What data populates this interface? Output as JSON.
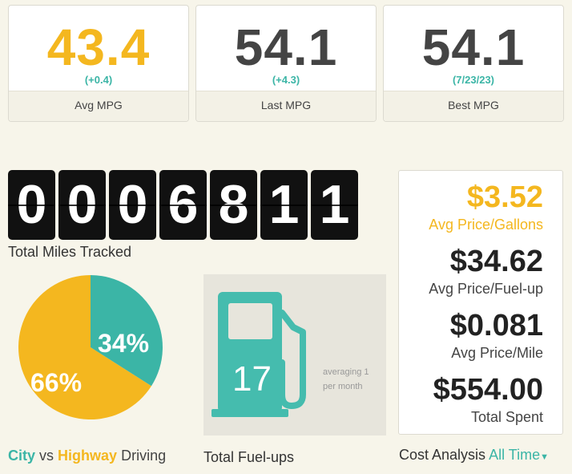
{
  "colors": {
    "teal": "#3bb5a6",
    "gold": "#f4b71f",
    "background": "#f7f5ea"
  },
  "stats": [
    {
      "value": "43.4",
      "delta": "(+0.4)",
      "label": "Avg MPG",
      "value_color": "#f4b71f"
    },
    {
      "value": "54.1",
      "delta": "(+4.3)",
      "label": "Last MPG",
      "value_color": "#444444"
    },
    {
      "value": "54.1",
      "delta": "(7/23/23)",
      "label": "Best MPG",
      "value_color": "#444444"
    }
  ],
  "odometer": {
    "digits": [
      "0",
      "0",
      "0",
      "6",
      "8",
      "1",
      "1"
    ],
    "label": "Total Miles Tracked"
  },
  "driving_split": {
    "highway_pct_text": "34%",
    "city_pct_text": "66%",
    "highway_fraction": 0.34,
    "city_fraction": 0.66,
    "caption_city": "City",
    "caption_vs": "vs",
    "caption_highway": "Highway",
    "caption_driving": "Driving"
  },
  "fuelups": {
    "count": "17",
    "note": "averaging 1 per month",
    "label": "Total Fuel-ups",
    "icon": "fuel-pump-icon"
  },
  "cost": {
    "avg_price_gallon": "$3.52",
    "avg_price_gallon_label": "Avg Price/Gallons",
    "avg_price_fillup": "$34.62",
    "avg_price_fillup_label": "Avg Price/Fuel-up",
    "avg_price_mile": "$0.081",
    "avg_price_mile_label": "Avg Price/Mile",
    "total_spent": "$554.00",
    "total_spent_label": "Total Spent",
    "caption": "Cost Analysis",
    "range": "All Time",
    "range_icon": "caret-down-icon"
  }
}
